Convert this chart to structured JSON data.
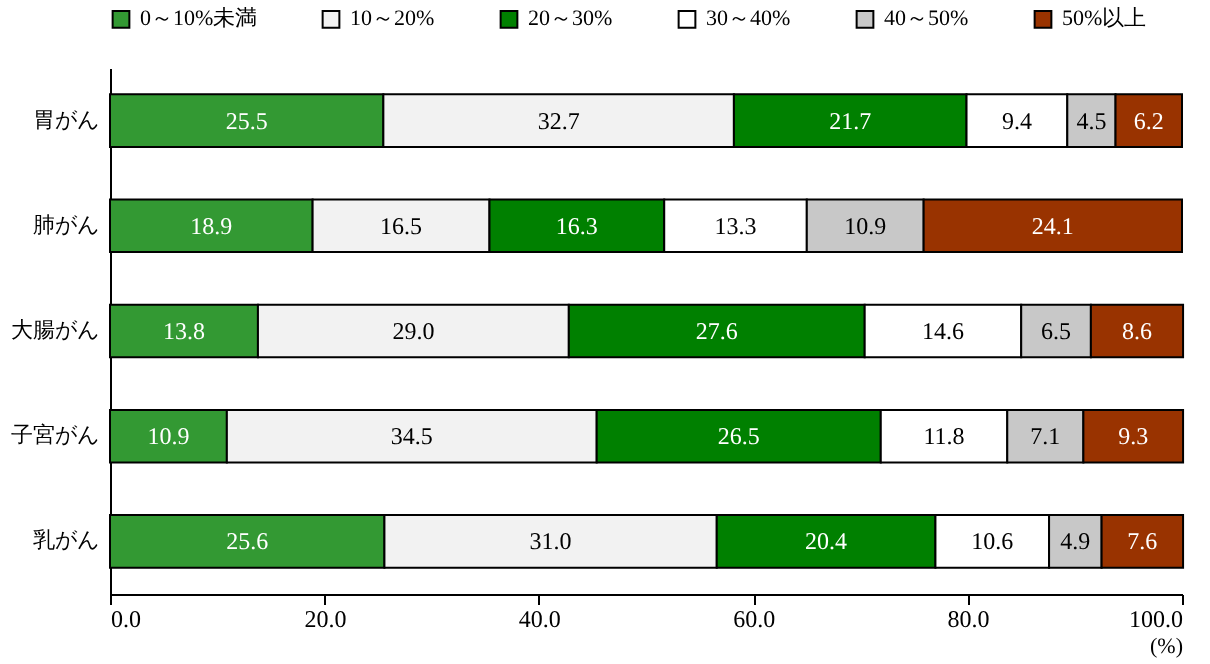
{
  "chart_data": {
    "type": "bar",
    "orientation": "horizontal",
    "stacked": true,
    "xlabel": "(%)",
    "categories": [
      "胃がん",
      "肺がん",
      "大腸がん",
      "子宮がん",
      "乳がん"
    ],
    "series": [
      {
        "name": "0～10%未満",
        "color": "#339933",
        "values": [
          25.5,
          18.9,
          13.8,
          10.9,
          25.6
        ],
        "value_labels": [
          "25.5",
          "18.9",
          "13.8",
          "10.9",
          "25.6"
        ]
      },
      {
        "name": "10～20%",
        "color": "#f2f2f2",
        "values": [
          32.7,
          16.5,
          29.0,
          34.5,
          31.0
        ],
        "value_labels": [
          "32.7",
          "16.5",
          "29.0",
          "34.5",
          "31.0"
        ]
      },
      {
        "name": "20～30%",
        "color": "#008000",
        "values": [
          21.7,
          16.3,
          27.6,
          26.5,
          20.4
        ],
        "value_labels": [
          "21.7",
          "16.3",
          "27.6",
          "26.5",
          "20.4"
        ]
      },
      {
        "name": "30～40%",
        "color": "#ffffff",
        "values": [
          9.4,
          13.3,
          14.6,
          11.8,
          10.6
        ],
        "value_labels": [
          "9.4",
          "13.3",
          "14.6",
          "11.8",
          "10.6"
        ]
      },
      {
        "name": "40～50%",
        "color": "#c8c8c8",
        "values": [
          4.5,
          10.9,
          6.5,
          7.1,
          4.9
        ],
        "value_labels": [
          "4.5",
          "10.9",
          "6.5",
          "7.1",
          "4.9"
        ]
      },
      {
        "name": "50%以上",
        "color": "#993300",
        "values": [
          6.2,
          24.1,
          8.6,
          9.3,
          7.6
        ],
        "value_labels": [
          "6.2",
          "24.1",
          "8.6",
          "9.3",
          "7.6"
        ]
      }
    ],
    "xlim": [
      0,
      100
    ],
    "xticks": [
      {
        "value": 0,
        "label": "0.0"
      },
      {
        "value": 20,
        "label": "20.0"
      },
      {
        "value": 40,
        "label": "40.0"
      },
      {
        "value": 60,
        "label": "60.0"
      },
      {
        "value": 80,
        "label": "80.0"
      },
      {
        "value": 100,
        "label": "100.0"
      }
    ],
    "grid": false,
    "legend": "top"
  }
}
